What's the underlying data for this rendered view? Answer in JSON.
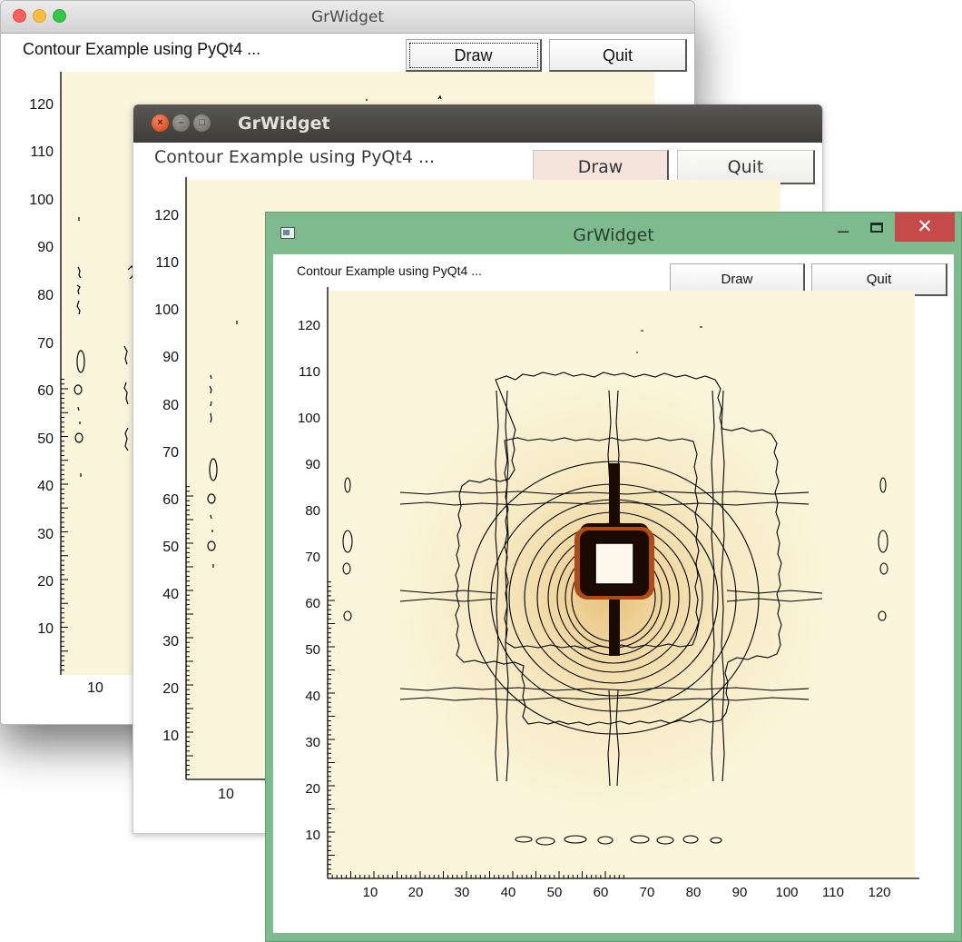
{
  "windows": [
    {
      "id": "mac",
      "title": "GrWidget",
      "header_text": "Contour Example using PyQt4 ...",
      "draw_label": "Draw",
      "quit_label": "Quit",
      "y_ticks": [
        "120",
        "110",
        "100",
        "90",
        "80",
        "70",
        "60",
        "50",
        "40",
        "30",
        "20",
        "10"
      ],
      "x_ticks": [
        "10"
      ]
    },
    {
      "id": "ubuntu",
      "title": "GrWidget",
      "header_text": "Contour Example using PyQt4 ...",
      "draw_label": "Draw",
      "quit_label": "Quit",
      "y_ticks": [
        "120",
        "110",
        "100",
        "90",
        "80",
        "70",
        "60",
        "50",
        "40",
        "30",
        "20",
        "10"
      ],
      "x_ticks": [
        "10"
      ]
    },
    {
      "id": "windows",
      "title": "GrWidget",
      "header_text": "Contour Example using PyQt4 ...",
      "draw_label": "Draw",
      "quit_label": "Quit",
      "y_ticks": [
        "120",
        "110",
        "100",
        "90",
        "80",
        "70",
        "60",
        "50",
        "40",
        "30",
        "20",
        "10"
      ],
      "x_ticks": [
        "10",
        "20",
        "30",
        "40",
        "50",
        "60",
        "70",
        "80",
        "90",
        "100",
        "110",
        "120"
      ],
      "close_glyph": "✕",
      "minimize_glyph": "–"
    }
  ],
  "colors": {
    "plot_background": "#fbf5dc",
    "contour_line": "#000000",
    "peak_core": "#fdf9ec",
    "peak_ring": "#b04a14"
  }
}
